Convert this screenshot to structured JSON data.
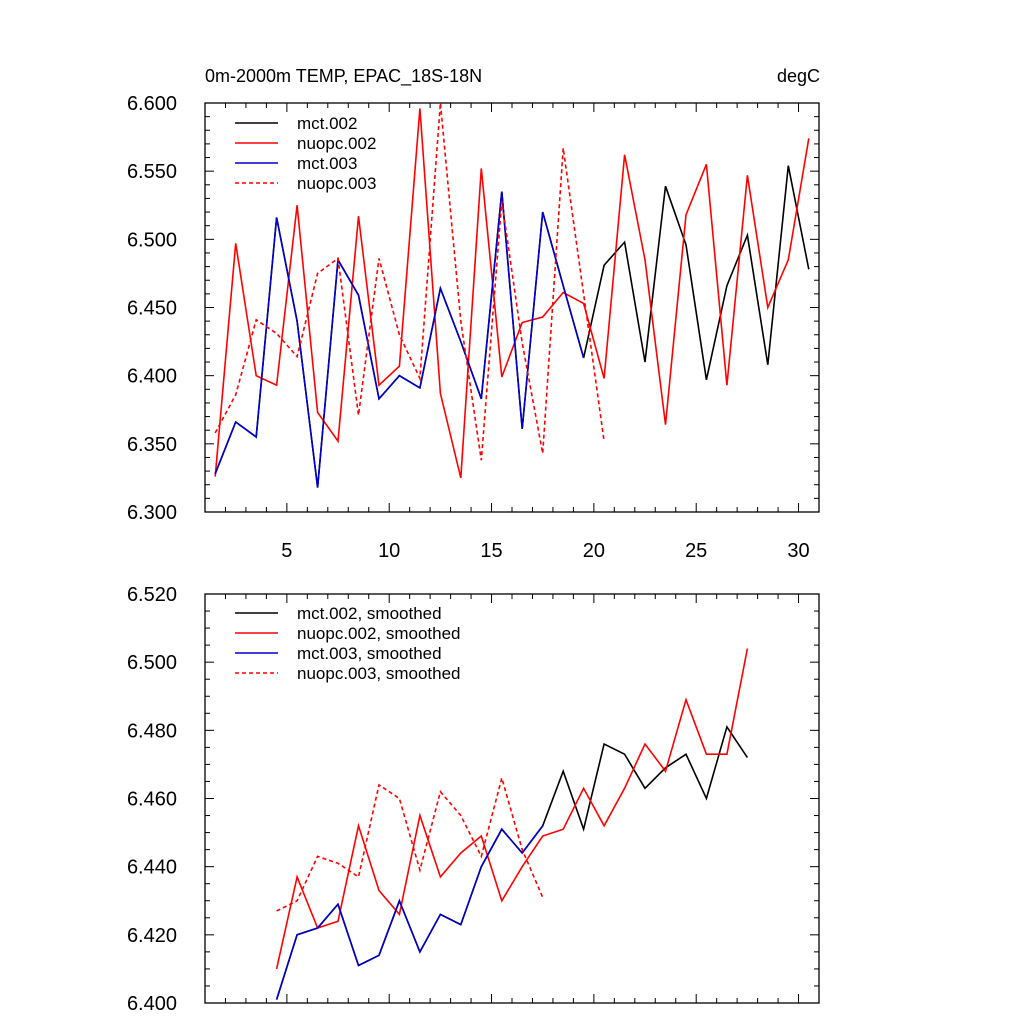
{
  "chart_data": [
    {
      "type": "line",
      "title": "0m-2000m TEMP, EPAC_18S-18N",
      "units": "degC",
      "xlim": [
        1,
        31
      ],
      "ylim": [
        6.3,
        6.6
      ],
      "xticks": [
        5,
        10,
        15,
        20,
        25,
        30
      ],
      "xtick_labels": [
        "5",
        "10",
        "15",
        "20",
        "25",
        "30"
      ],
      "yticks": [
        6.3,
        6.35,
        6.4,
        6.45,
        6.5,
        6.55,
        6.6
      ],
      "ytick_labels": [
        "6.300",
        "6.350",
        "6.400",
        "6.450",
        "6.500",
        "6.550",
        "6.600"
      ],
      "series": [
        {
          "name": "mct.002",
          "color": "#000000",
          "dash": "solid",
          "x": [
            1.5,
            2.5,
            3.5,
            4.5,
            5.5,
            6.5,
            7.5,
            8.5,
            9.5,
            10.5,
            11.5,
            12.5,
            13.5,
            14.5,
            15.5,
            16.5,
            17.5,
            18.5,
            19.5,
            20.5,
            21.5,
            22.5,
            23.5,
            24.5,
            25.5,
            26.5,
            27.5,
            28.5,
            29.5,
            30.5
          ],
          "values": [
            6.328,
            6.366,
            6.355,
            6.516,
            6.44,
            6.318,
            6.485,
            6.459,
            6.383,
            6.4,
            6.391,
            6.464,
            6.425,
            6.383,
            6.535,
            6.361,
            6.52,
            6.466,
            6.413,
            6.481,
            6.498,
            6.41,
            6.539,
            6.496,
            6.397,
            6.466,
            6.503,
            6.408,
            6.554,
            6.478
          ]
        },
        {
          "name": "nuopc.002",
          "color": "#ff0000",
          "dash": "solid",
          "x": [
            1.5,
            2.5,
            3.5,
            4.5,
            5.5,
            6.5,
            7.5,
            8.5,
            9.5,
            10.5,
            11.5,
            12.5,
            13.5,
            14.5,
            15.5,
            16.5,
            17.5,
            18.5,
            19.5,
            20.5,
            21.5,
            22.5,
            23.5,
            24.5,
            25.5,
            26.5,
            27.5,
            28.5,
            29.5,
            30.5
          ],
          "values": [
            6.326,
            6.497,
            6.4,
            6.393,
            6.525,
            6.373,
            6.352,
            6.517,
            6.393,
            6.407,
            6.596,
            6.387,
            6.325,
            6.552,
            6.399,
            6.439,
            6.443,
            6.461,
            6.453,
            6.398,
            6.562,
            6.485,
            6.364,
            6.518,
            6.555,
            6.393,
            6.547,
            6.45,
            6.485,
            6.574
          ]
        },
        {
          "name": "mct.003",
          "color": "#0000cc",
          "dash": "solid",
          "x": [
            1.5,
            2.5,
            3.5,
            4.5,
            5.5,
            6.5,
            7.5,
            8.5,
            9.5,
            10.5,
            11.5,
            12.5,
            13.5,
            14.5,
            15.5,
            16.5,
            17.5,
            18.5,
            19.5
          ],
          "values": [
            6.328,
            6.366,
            6.355,
            6.516,
            6.44,
            6.318,
            6.485,
            6.459,
            6.383,
            6.4,
            6.391,
            6.464,
            6.425,
            6.383,
            6.535,
            6.361,
            6.52,
            6.466,
            6.413
          ]
        },
        {
          "name": "nuopc.003",
          "color": "#ff0000",
          "dash": "dashed",
          "x": [
            1.5,
            2.5,
            3.5,
            4.5,
            5.5,
            6.5,
            7.5,
            8.5,
            9.5,
            10.5,
            11.5,
            12.5,
            13.5,
            14.5,
            15.5,
            16.5,
            17.5,
            18.5,
            19.5,
            20.5
          ],
          "values": [
            6.358,
            6.386,
            6.441,
            6.431,
            6.414,
            6.475,
            6.486,
            6.371,
            6.486,
            6.43,
            6.398,
            6.6,
            6.44,
            6.338,
            6.528,
            6.424,
            6.343,
            6.567,
            6.46,
            6.352
          ]
        }
      ]
    },
    {
      "type": "line",
      "xlim": [
        1,
        31
      ],
      "ylim": [
        6.4,
        6.52
      ],
      "xticks": [
        5,
        10,
        15,
        20,
        25,
        30
      ],
      "yticks": [
        6.4,
        6.42,
        6.44,
        6.46,
        6.48,
        6.5,
        6.52
      ],
      "ytick_labels": [
        "6.400",
        "6.420",
        "6.440",
        "6.460",
        "6.480",
        "6.500",
        "6.520"
      ],
      "series": [
        {
          "name": "mct.002, smoothed",
          "color": "#000000",
          "dash": "solid",
          "x": [
            4.5,
            5.5,
            6.5,
            7.5,
            8.5,
            9.5,
            10.5,
            11.5,
            12.5,
            13.5,
            14.5,
            15.5,
            16.5,
            17.5,
            18.5,
            19.5,
            20.5,
            21.5,
            22.5,
            23.5,
            24.5,
            25.5,
            26.5,
            27.5
          ],
          "values": [
            6.401,
            6.42,
            6.422,
            6.429,
            6.411,
            6.414,
            6.43,
            6.415,
            6.426,
            6.423,
            6.44,
            6.451,
            6.444,
            6.452,
            6.468,
            6.451,
            6.476,
            6.473,
            6.463,
            6.469,
            6.473,
            6.46,
            6.481,
            6.472
          ]
        },
        {
          "name": "nuopc.002, smoothed",
          "color": "#ff0000",
          "dash": "solid",
          "x": [
            4.5,
            5.5,
            6.5,
            7.5,
            8.5,
            9.5,
            10.5,
            11.5,
            12.5,
            13.5,
            14.5,
            15.5,
            16.5,
            17.5,
            18.5,
            19.5,
            20.5,
            21.5,
            22.5,
            23.5,
            24.5,
            25.5,
            26.5,
            27.5
          ],
          "values": [
            6.41,
            6.437,
            6.422,
            6.424,
            6.452,
            6.433,
            6.426,
            6.455,
            6.437,
            6.444,
            6.449,
            6.43,
            6.44,
            6.449,
            6.451,
            6.463,
            6.452,
            6.463,
            6.476,
            6.468,
            6.489,
            6.473,
            6.473,
            6.504
          ]
        },
        {
          "name": "mct.003, smoothed",
          "color": "#0000cc",
          "dash": "solid",
          "x": [
            4.5,
            5.5,
            6.5,
            7.5,
            8.5,
            9.5,
            10.5,
            11.5,
            12.5,
            13.5,
            14.5,
            15.5,
            16.5,
            17.5
          ],
          "values": [
            6.401,
            6.42,
            6.422,
            6.429,
            6.411,
            6.414,
            6.43,
            6.415,
            6.426,
            6.423,
            6.44,
            6.451,
            6.444,
            6.452
          ]
        },
        {
          "name": "nuopc.003, smoothed",
          "color": "#ff0000",
          "dash": "dashed",
          "x": [
            4.5,
            5.5,
            6.5,
            7.5,
            8.5,
            9.5,
            10.5,
            11.5,
            12.5,
            13.5,
            14.5,
            15.5,
            16.5,
            17.5
          ],
          "values": [
            6.427,
            6.43,
            6.443,
            6.441,
            6.437,
            6.464,
            6.46,
            6.439,
            6.462,
            6.455,
            6.443,
            6.466,
            6.445,
            6.431
          ]
        }
      ]
    }
  ]
}
